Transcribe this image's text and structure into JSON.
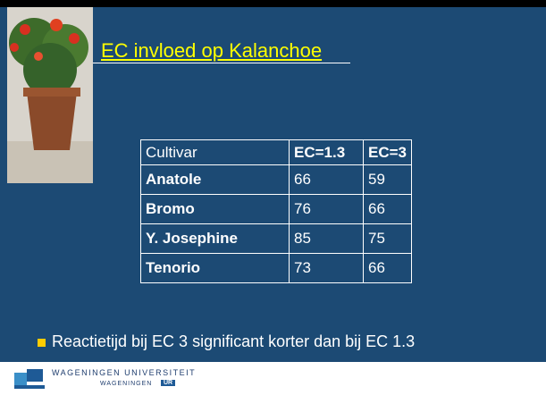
{
  "slide": {
    "title": "EC invloed op Kalanchoe",
    "table": {
      "header": [
        "Cultivar",
        "EC=1.3",
        "EC=3"
      ],
      "rows": [
        [
          "Anatole",
          66,
          59
        ],
        [
          "Bromo",
          76,
          66
        ],
        [
          "Y. Josephine",
          85,
          75
        ],
        [
          "Tenorio",
          73,
          66
        ]
      ]
    },
    "bullet": "Reactietijd bij EC 3 significant korter dan bij EC 1.3",
    "footer": {
      "university": "WAGENINGEN UNIVERSITEIT",
      "brand": "WAGENINGEN",
      "brand_tag": "UR"
    }
  }
}
